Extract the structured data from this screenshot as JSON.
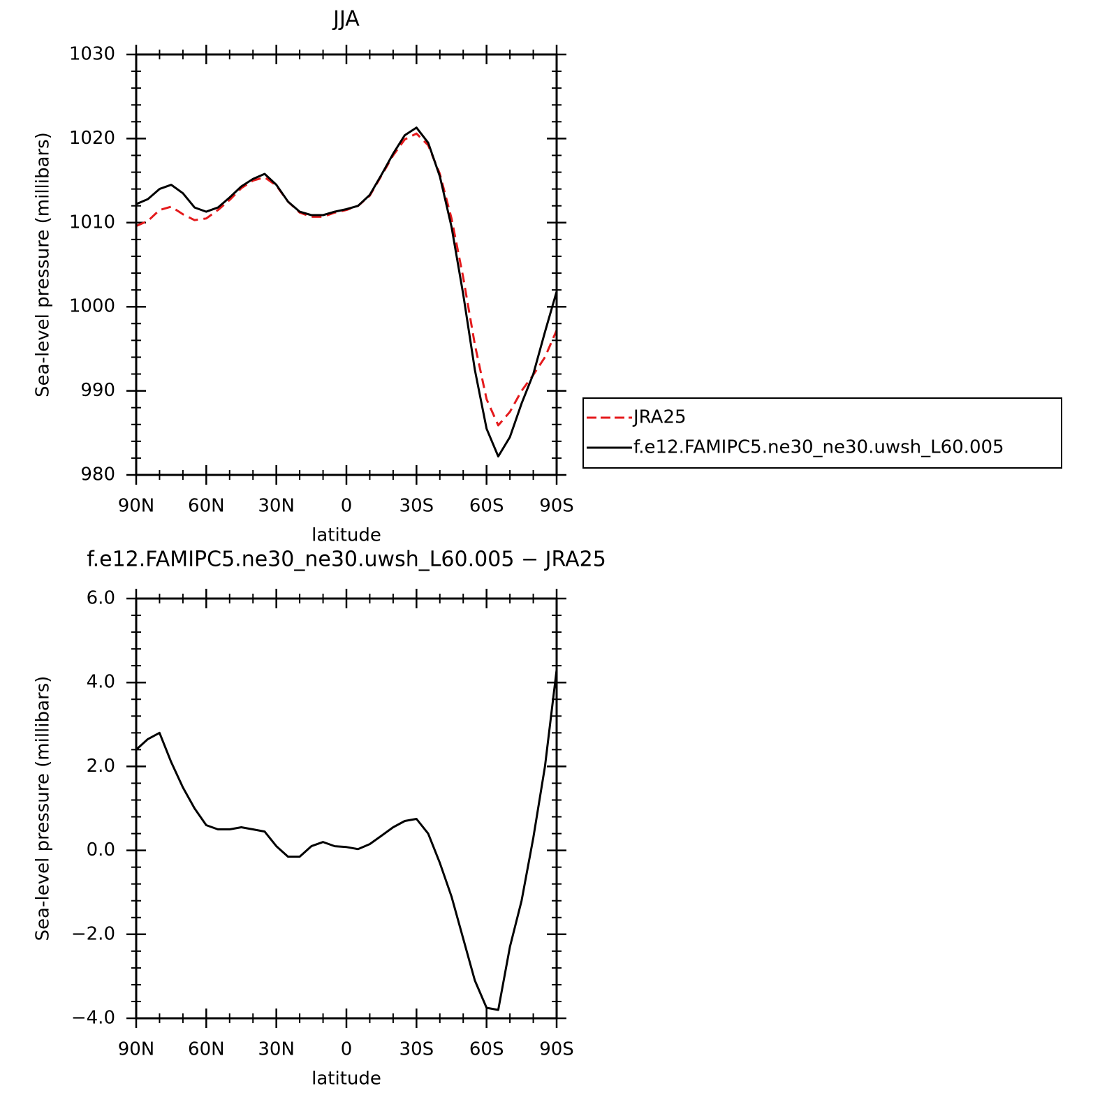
{
  "chart_data": [
    {
      "type": "line",
      "title": "JJA",
      "xlabel": "latitude",
      "ylabel": "Sea-level pressure (millibars)",
      "x": [
        90,
        85,
        80,
        75,
        70,
        65,
        60,
        55,
        50,
        45,
        40,
        35,
        30,
        25,
        20,
        15,
        10,
        5,
        0,
        -5,
        -10,
        -15,
        -20,
        -25,
        -30,
        -35,
        -40,
        -45,
        -50,
        -55,
        -60,
        -65,
        -70,
        -75,
        -80,
        -85,
        -90
      ],
      "series": [
        {
          "name": "JRA25",
          "color": "#e41a1c",
          "dashed": true,
          "values": [
            1009.6,
            1010.2,
            1011.5,
            1011.9,
            1011,
            1010.3,
            1010.5,
            1011.5,
            1012.7,
            1014.1,
            1015,
            1015.4,
            1014.4,
            1012.5,
            1011.2,
            1010.7,
            1010.7,
            1011.2,
            1011.5,
            1012,
            1013.2,
            1015.6,
            1018,
            1019.9,
            1020.6,
            1019.2,
            1015.8,
            1010.5,
            1003.5,
            995.5,
            989,
            985.9,
            987.5,
            990,
            991.9,
            994,
            997.2
          ]
        },
        {
          "name": "f.e12.FAMIPC5.ne30_ne30.uwsh_L60.005",
          "color": "#000000",
          "dashed": false,
          "values": [
            1012.2,
            1012.8,
            1014,
            1014.5,
            1013.5,
            1011.8,
            1011.3,
            1011.8,
            1013,
            1014.3,
            1015.2,
            1015.8,
            1014.5,
            1012.5,
            1011.3,
            1010.9,
            1010.9,
            1011.3,
            1011.6,
            1012,
            1013.3,
            1015.7,
            1018.2,
            1020.4,
            1021.3,
            1019.5,
            1015.5,
            1009.5,
            1001.5,
            992.5,
            985.5,
            982.2,
            984.5,
            988.5,
            992,
            997,
            1001.8
          ]
        }
      ],
      "xlim": [
        90,
        -90
      ],
      "xticks": [
        {
          "value": 90,
          "label": "90N"
        },
        {
          "value": 60,
          "label": "60N"
        },
        {
          "value": 30,
          "label": "30N"
        },
        0,
        {
          "value": -30,
          "label": "30S"
        },
        {
          "value": -60,
          "label": "60S"
        },
        {
          "value": -90,
          "label": "90S"
        }
      ],
      "ylim": [
        980,
        1030
      ],
      "yticks": [
        980,
        990,
        1000,
        1010,
        1020,
        1030
      ],
      "legend": "right"
    },
    {
      "type": "line",
      "title": "f.e12.FAMIPC5.ne30_ne30.uwsh_L60.005 − JRA25",
      "xlabel": "latitude",
      "ylabel": "Sea-level pressure (millibars)",
      "x": [
        90,
        85,
        80,
        75,
        70,
        65,
        60,
        55,
        50,
        45,
        40,
        35,
        30,
        25,
        20,
        15,
        10,
        5,
        0,
        -5,
        -10,
        -15,
        -20,
        -25,
        -30,
        -35,
        -40,
        -45,
        -50,
        -55,
        -60,
        -65,
        -70,
        -75,
        -80,
        -85,
        -90
      ],
      "series": [
        {
          "color": "#000000",
          "dashed": false,
          "values": [
            2.4,
            2.65,
            2.8,
            2.1,
            1.5,
            1.0,
            0.6,
            0.5,
            0.5,
            0.55,
            0.5,
            0.45,
            0.1,
            -0.15,
            -0.15,
            0.1,
            0.2,
            0.1,
            0.08,
            0.03,
            0.15,
            0.35,
            0.55,
            0.7,
            0.75,
            0.4,
            -0.3,
            -1.1,
            -2.1,
            -3.1,
            -3.75,
            -3.8,
            -2.3,
            -1.2,
            0.3,
            2.0,
            4.3
          ]
        }
      ],
      "xlim": [
        90,
        -90
      ],
      "xticks": [
        {
          "value": 90,
          "label": "90N"
        },
        {
          "value": 60,
          "label": "60N"
        },
        {
          "value": 30,
          "label": "30N"
        },
        0,
        {
          "value": -30,
          "label": "30S"
        },
        {
          "value": -60,
          "label": "60S"
        },
        {
          "value": -90,
          "label": "90S"
        }
      ],
      "ylim": [
        -4,
        6
      ],
      "yticks": [
        {
          "value": -4,
          "label": "−4.0"
        },
        {
          "value": -2,
          "label": "−2.0"
        },
        {
          "value": 0,
          "label": "0.0"
        },
        {
          "value": 2,
          "label": "2.0"
        },
        {
          "value": 4,
          "label": "4.0"
        },
        {
          "value": 6,
          "label": "6.0"
        }
      ]
    }
  ]
}
